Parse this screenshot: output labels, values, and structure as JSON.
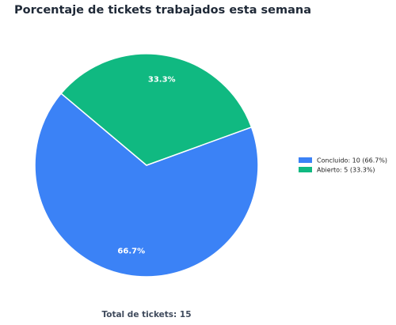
{
  "chart_data": {
    "type": "pie",
    "title": "Porcentaje de tickets trabajados esta semana",
    "categories": [
      "Concluido: 10 (66.7%)",
      "Abierto: 5 (33.3%)"
    ],
    "values": [
      66.7,
      33.3
    ],
    "value_labels": [
      "66.7%",
      "33.3%"
    ],
    "colors": [
      "#3b82f6",
      "#10b981"
    ],
    "legend": "right",
    "annotation": "Total de tickets: 15"
  }
}
